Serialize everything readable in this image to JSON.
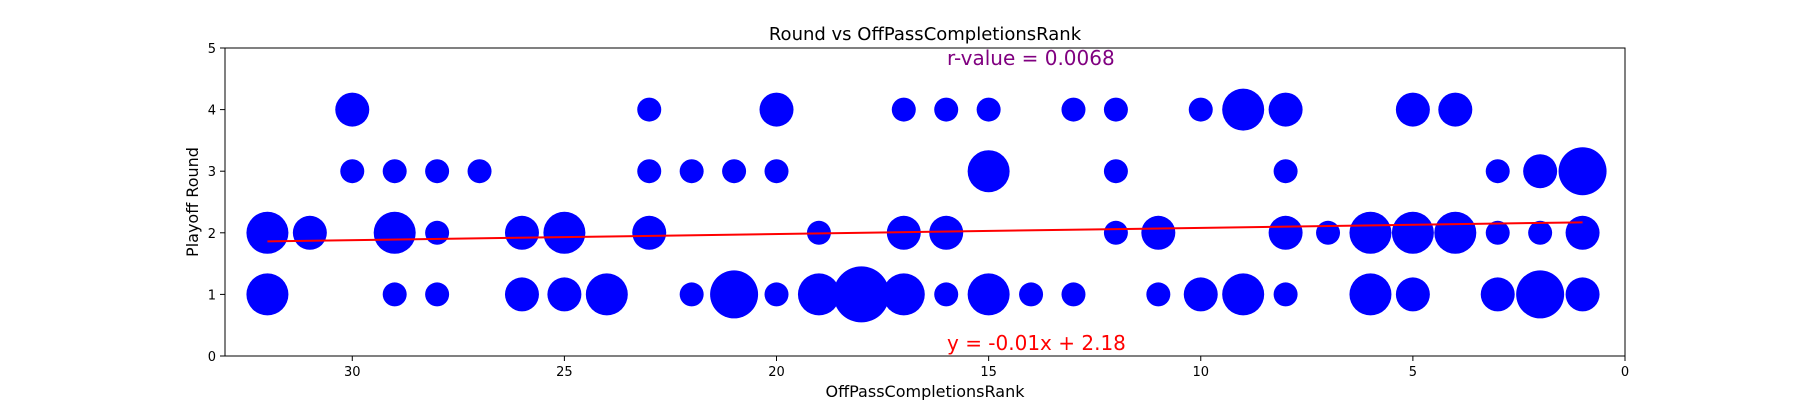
{
  "chart_data": {
    "type": "scatter",
    "title": "Round vs OffPassCompletionsRank",
    "xlabel": "OffPassCompletionsRank",
    "ylabel": "Playoff Round",
    "xlim": [
      33,
      0
    ],
    "ylim": [
      0,
      5
    ],
    "x_ticks": [
      30,
      25,
      20,
      15,
      10,
      5,
      0
    ],
    "y_ticks": [
      0,
      1,
      2,
      3,
      4,
      5
    ],
    "x_inverted": true,
    "grid": false,
    "point_color": "#0000ff",
    "trend_color": "#ff0000",
    "annotation_color_r": "#800080",
    "r_value_text": "r-value = 0.0068",
    "equation_text": "y = -0.01x + 2.18",
    "trendline": {
      "slope": -0.01,
      "intercept": 2.18,
      "x_start": 32,
      "x_end": 1
    },
    "points": [
      {
        "x": 30,
        "y": 4,
        "s": 2
      },
      {
        "x": 23,
        "y": 4,
        "s": 1
      },
      {
        "x": 20,
        "y": 4,
        "s": 2
      },
      {
        "x": 17,
        "y": 4,
        "s": 1
      },
      {
        "x": 16,
        "y": 4,
        "s": 1
      },
      {
        "x": 15,
        "y": 4,
        "s": 1
      },
      {
        "x": 13,
        "y": 4,
        "s": 1
      },
      {
        "x": 12,
        "y": 4,
        "s": 1
      },
      {
        "x": 10,
        "y": 4,
        "s": 1
      },
      {
        "x": 9,
        "y": 4,
        "s": 3
      },
      {
        "x": 8,
        "y": 4,
        "s": 2
      },
      {
        "x": 5,
        "y": 4,
        "s": 2
      },
      {
        "x": 4,
        "y": 4,
        "s": 2
      },
      {
        "x": 30,
        "y": 3,
        "s": 1
      },
      {
        "x": 29,
        "y": 3,
        "s": 1
      },
      {
        "x": 28,
        "y": 3,
        "s": 1
      },
      {
        "x": 27,
        "y": 3,
        "s": 1
      },
      {
        "x": 23,
        "y": 3,
        "s": 1
      },
      {
        "x": 22,
        "y": 3,
        "s": 1
      },
      {
        "x": 21,
        "y": 3,
        "s": 1
      },
      {
        "x": 20,
        "y": 3,
        "s": 1
      },
      {
        "x": 15,
        "y": 3,
        "s": 3
      },
      {
        "x": 12,
        "y": 3,
        "s": 1
      },
      {
        "x": 8,
        "y": 3,
        "s": 1
      },
      {
        "x": 3,
        "y": 3,
        "s": 1
      },
      {
        "x": 2,
        "y": 3,
        "s": 2
      },
      {
        "x": 1,
        "y": 3,
        "s": 4
      },
      {
        "x": 32,
        "y": 2,
        "s": 3
      },
      {
        "x": 31,
        "y": 2,
        "s": 2
      },
      {
        "x": 29,
        "y": 2,
        "s": 3
      },
      {
        "x": 28,
        "y": 2,
        "s": 1
      },
      {
        "x": 26,
        "y": 2,
        "s": 2
      },
      {
        "x": 25,
        "y": 2,
        "s": 3
      },
      {
        "x": 23,
        "y": 2,
        "s": 2
      },
      {
        "x": 19,
        "y": 2,
        "s": 1
      },
      {
        "x": 17,
        "y": 2,
        "s": 2
      },
      {
        "x": 16,
        "y": 2,
        "s": 2
      },
      {
        "x": 12,
        "y": 2,
        "s": 1
      },
      {
        "x": 11,
        "y": 2,
        "s": 2
      },
      {
        "x": 8,
        "y": 2,
        "s": 2
      },
      {
        "x": 7,
        "y": 2,
        "s": 1
      },
      {
        "x": 6,
        "y": 2,
        "s": 3
      },
      {
        "x": 5,
        "y": 2,
        "s": 3
      },
      {
        "x": 4,
        "y": 2,
        "s": 3
      },
      {
        "x": 3,
        "y": 2,
        "s": 1
      },
      {
        "x": 2,
        "y": 2,
        "s": 1
      },
      {
        "x": 1,
        "y": 2,
        "s": 2
      },
      {
        "x": 32,
        "y": 1,
        "s": 3
      },
      {
        "x": 29,
        "y": 1,
        "s": 1
      },
      {
        "x": 28,
        "y": 1,
        "s": 1
      },
      {
        "x": 26,
        "y": 1,
        "s": 2
      },
      {
        "x": 25,
        "y": 1,
        "s": 2
      },
      {
        "x": 24,
        "y": 1,
        "s": 3
      },
      {
        "x": 22,
        "y": 1,
        "s": 1
      },
      {
        "x": 21,
        "y": 1,
        "s": 4
      },
      {
        "x": 20,
        "y": 1,
        "s": 1
      },
      {
        "x": 19,
        "y": 1,
        "s": 3
      },
      {
        "x": 18,
        "y": 1,
        "s": 5
      },
      {
        "x": 17,
        "y": 1,
        "s": 3
      },
      {
        "x": 16,
        "y": 1,
        "s": 1
      },
      {
        "x": 15,
        "y": 1,
        "s": 3
      },
      {
        "x": 14,
        "y": 1,
        "s": 1
      },
      {
        "x": 13,
        "y": 1,
        "s": 1
      },
      {
        "x": 11,
        "y": 1,
        "s": 1
      },
      {
        "x": 10,
        "y": 1,
        "s": 2
      },
      {
        "x": 9,
        "y": 1,
        "s": 3
      },
      {
        "x": 8,
        "y": 1,
        "s": 1
      },
      {
        "x": 6,
        "y": 1,
        "s": 3
      },
      {
        "x": 5,
        "y": 1,
        "s": 2
      },
      {
        "x": 3,
        "y": 1,
        "s": 2
      },
      {
        "x": 2,
        "y": 1,
        "s": 4
      },
      {
        "x": 1,
        "y": 1,
        "s": 2
      }
    ]
  }
}
